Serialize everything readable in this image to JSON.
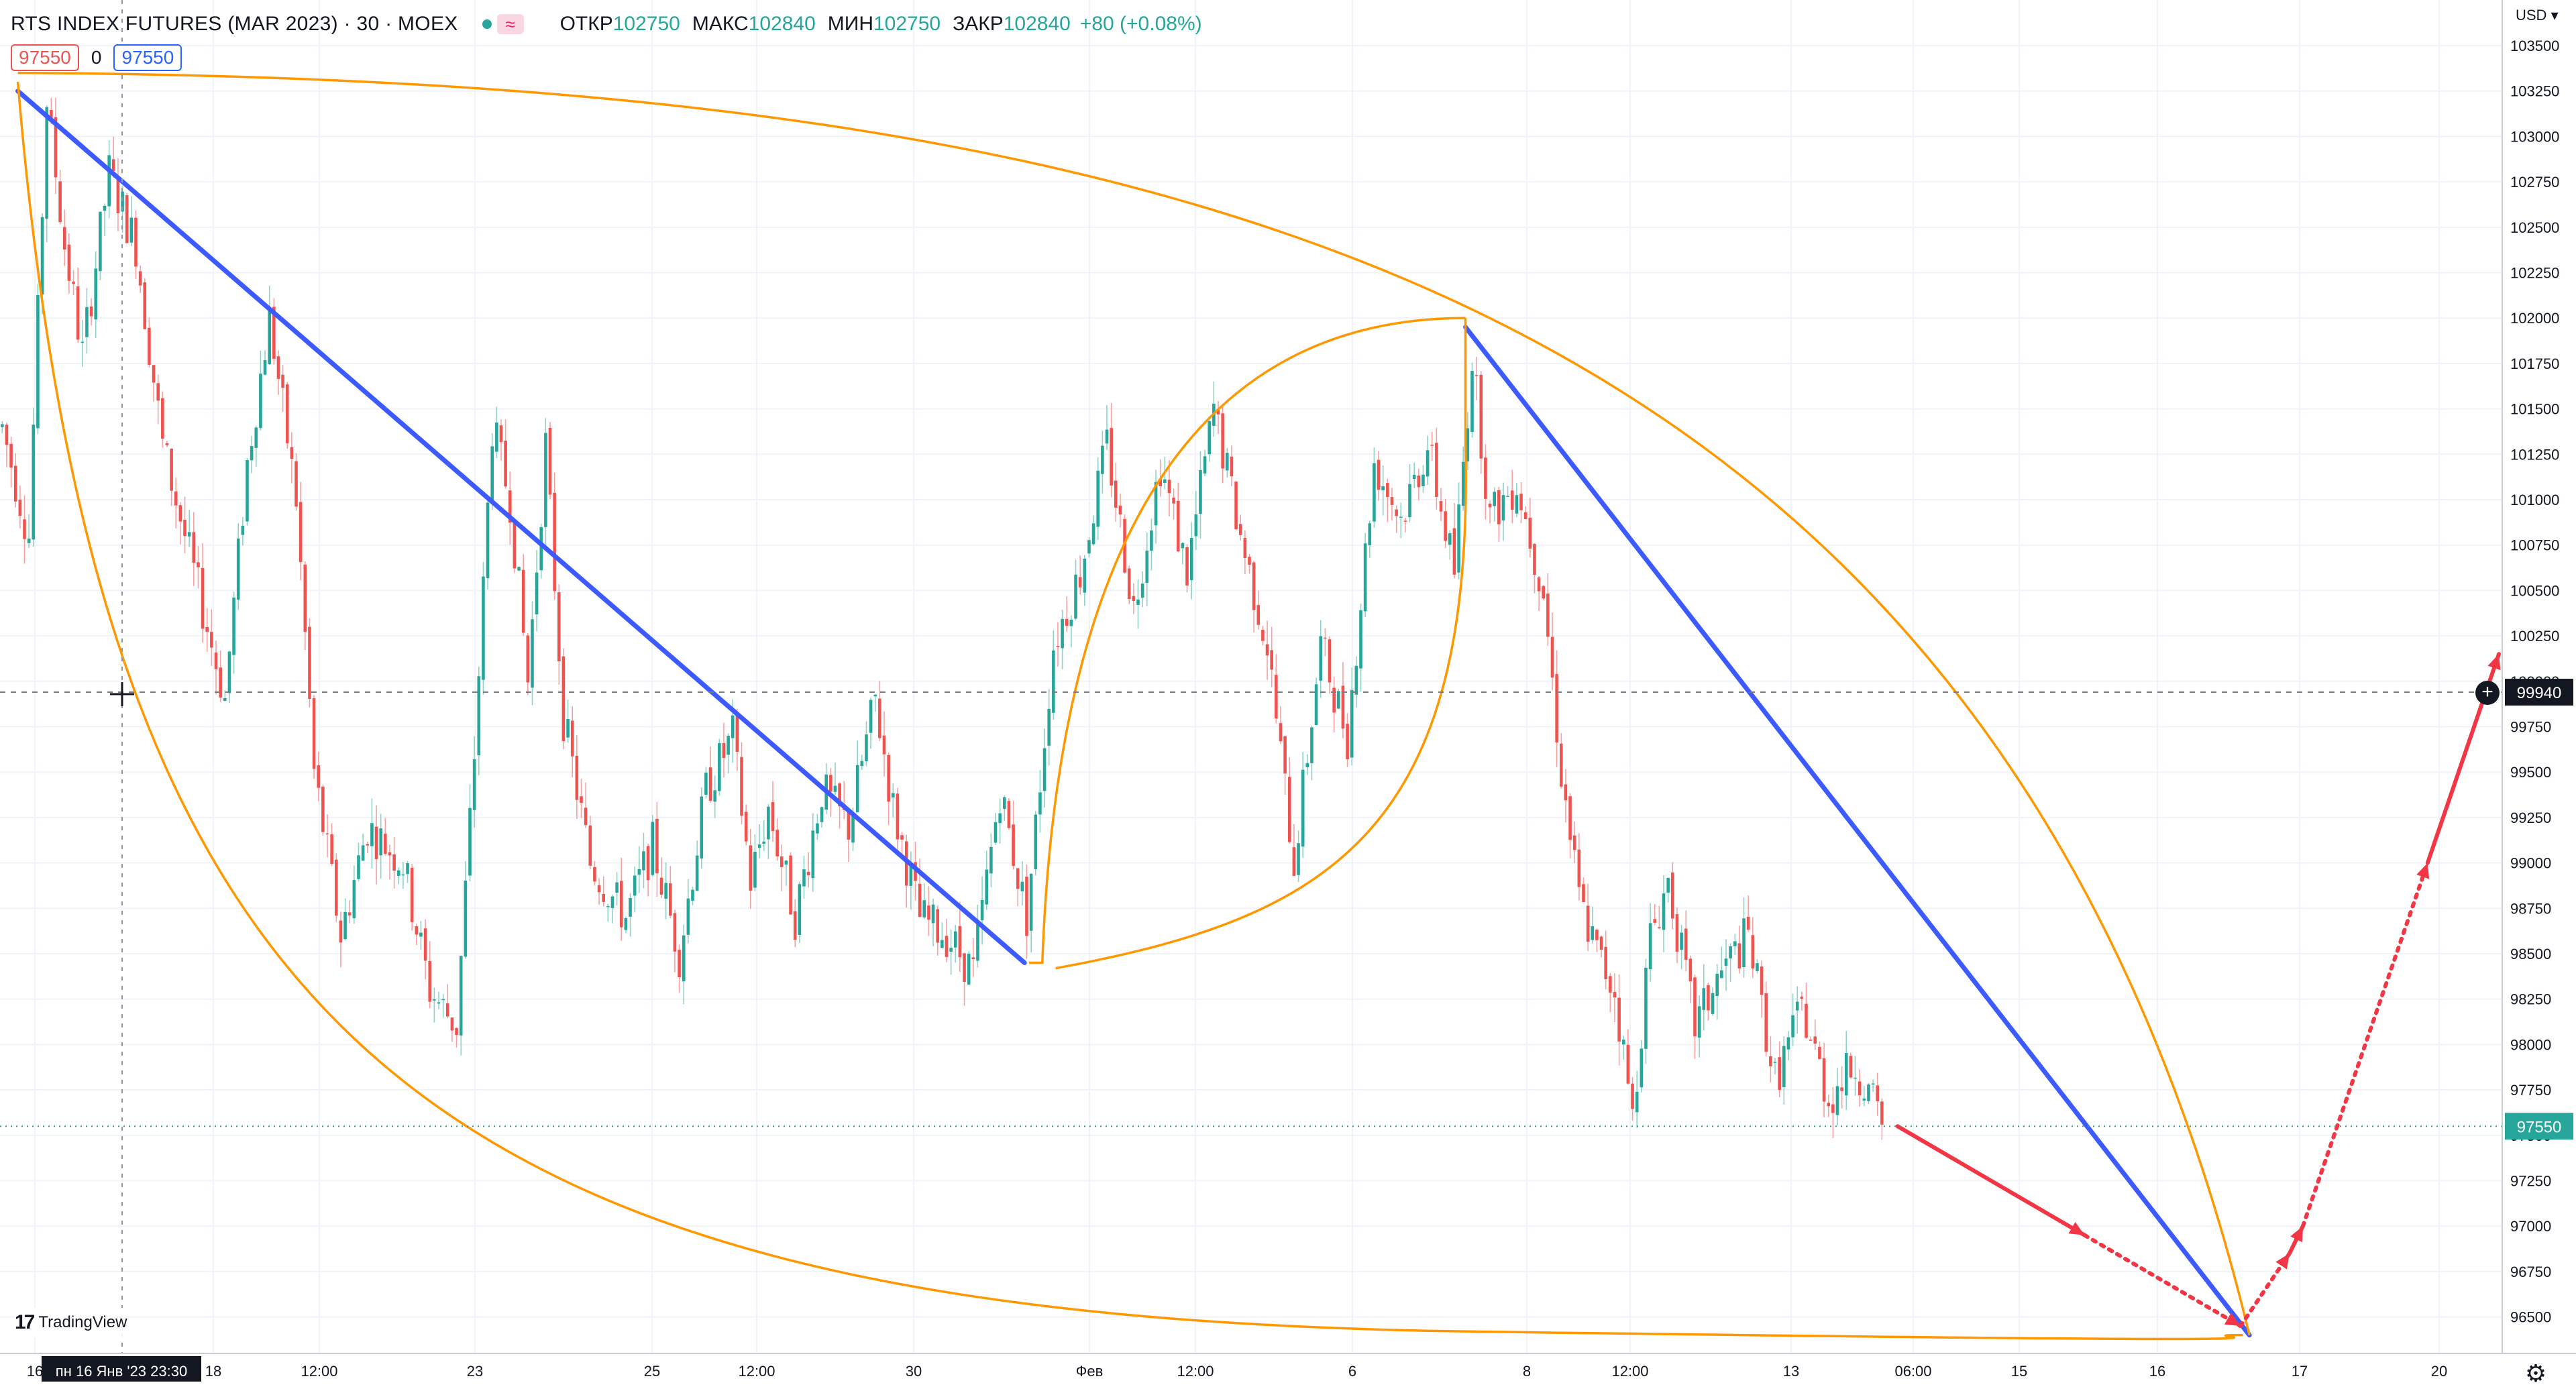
{
  "header": {
    "symbol": "RTS INDEX FUTURES (MAR 2023) · 30 · MOEX",
    "open_label": "ОТКР",
    "open_value": "102750",
    "high_label": "МАКС",
    "high_value": "102840",
    "low_label": "МИН",
    "low_value": "102750",
    "close_label": "ЗАКР",
    "close_value": "102840",
    "change": "+80 (+0.08%)"
  },
  "trade": {
    "sell_price": "97550",
    "spread": "0",
    "buy_price": "97550"
  },
  "currency": "USD",
  "logo_text": "TradingView",
  "crosshair_time_label": "пн 16 Янв '23   23:30",
  "crosshair_price_label": "99940",
  "last_price_label": "97550",
  "chart_data": {
    "type": "candlestick",
    "title": "RTS INDEX FUTURES (MAR 2023) · 30 · MOEX",
    "x_ticks": [
      "16",
      "18",
      "12:00",
      "23",
      "25",
      "12:00",
      "30",
      "Фев",
      "12:00",
      "6",
      "8",
      "12:00",
      "13",
      "06:00",
      "15",
      "16",
      "17",
      "20"
    ],
    "y_ticks": [
      103500,
      103250,
      103000,
      102750,
      102500,
      102250,
      102000,
      101750,
      101500,
      101250,
      101000,
      100750,
      100500,
      100250,
      100000,
      99750,
      99500,
      99250,
      99000,
      98750,
      98500,
      98250,
      98000,
      97750,
      97500,
      97250,
      97000,
      96750,
      96500
    ],
    "ylim": [
      96300,
      103700
    ],
    "grid": true,
    "colors": {
      "up": "#26a69a",
      "down": "#ef5350",
      "wick_up": "#8dd3c7",
      "wick_down": "#f7a1a1",
      "trendline": "#3d5afe",
      "curve": "#ff9800",
      "arrow": "#f23645"
    },
    "price_path": [
      [
        0,
        101400
      ],
      [
        6,
        100800
      ],
      [
        10,
        103200
      ],
      [
        14,
        102400
      ],
      [
        18,
        101800
      ],
      [
        24,
        102800
      ],
      [
        30,
        102400
      ],
      [
        36,
        101300
      ],
      [
        44,
        100500
      ],
      [
        50,
        99900
      ],
      [
        55,
        101200
      ],
      [
        60,
        102000
      ],
      [
        66,
        101000
      ],
      [
        70,
        99500
      ],
      [
        76,
        98600
      ],
      [
        82,
        99200
      ],
      [
        90,
        99000
      ],
      [
        96,
        98300
      ],
      [
        102,
        98100
      ],
      [
        106,
        99600
      ],
      [
        110,
        101400
      ],
      [
        114,
        101000
      ],
      [
        118,
        100000
      ],
      [
        122,
        101300
      ],
      [
        126,
        99800
      ],
      [
        132,
        99000
      ],
      [
        140,
        98700
      ],
      [
        146,
        99100
      ],
      [
        152,
        98500
      ],
      [
        158,
        99400
      ],
      [
        164,
        99700
      ],
      [
        168,
        98900
      ],
      [
        172,
        99300
      ],
      [
        178,
        98700
      ],
      [
        184,
        99400
      ],
      [
        190,
        99200
      ],
      [
        196,
        99900
      ],
      [
        200,
        99300
      ],
      [
        206,
        98700
      ],
      [
        212,
        98600
      ],
      [
        218,
        98400
      ],
      [
        224,
        99400
      ],
      [
        230,
        98700
      ],
      [
        236,
        100200
      ],
      [
        242,
        100600
      ],
      [
        248,
        101300
      ],
      [
        254,
        100400
      ],
      [
        260,
        101200
      ],
      [
        266,
        100600
      ],
      [
        272,
        101500
      ],
      [
        278,
        100800
      ],
      [
        284,
        100200
      ],
      [
        290,
        99000
      ],
      [
        296,
        100200
      ],
      [
        302,
        99700
      ],
      [
        308,
        101200
      ],
      [
        314,
        100900
      ],
      [
        320,
        101300
      ],
      [
        326,
        100600
      ],
      [
        330,
        101800
      ],
      [
        334,
        100900
      ],
      [
        340,
        101100
      ],
      [
        346,
        100500
      ],
      [
        350,
        99500
      ],
      [
        354,
        98800
      ],
      [
        358,
        98500
      ],
      [
        362,
        98300
      ],
      [
        366,
        97600
      ],
      [
        370,
        98600
      ],
      [
        374,
        98900
      ],
      [
        380,
        98100
      ],
      [
        386,
        98400
      ],
      [
        392,
        98600
      ],
      [
        398,
        97800
      ],
      [
        404,
        98200
      ],
      [
        410,
        97700
      ],
      [
        416,
        97900
      ],
      [
        422,
        97550
      ]
    ],
    "bars_shown": 422,
    "drawings": {
      "blue_trendlines": [
        {
          "from": [
            4,
            103250
          ],
          "to": [
            230,
            98450
          ]
        },
        {
          "from": [
            329,
            101950
          ],
          "to": [
            505,
            96400
          ]
        }
      ],
      "orange_outer_arc": {
        "from": [
          4,
          103350
        ],
        "peak": [
          176,
          102600
        ],
        "to": [
          505,
          96400
        ]
      },
      "orange_lower_arc": {
        "from": [
          4,
          103300
        ],
        "bottom": [
          170,
          96500
        ],
        "to": [
          505,
          96400
        ]
      },
      "orange_inner_arc": {
        "from": [
          233,
          98450
        ],
        "top": [
          329,
          102000
        ],
        "bottom_left": [
          233,
          98300
        ]
      },
      "red_forecast": [
        [
          426,
          97550
        ],
        [
          468,
          96950
        ],
        [
          503,
          96450
        ],
        [
          514,
          96850
        ],
        [
          517,
          97000
        ],
        [
          545,
          99000
        ],
        [
          561,
          100150
        ]
      ]
    }
  }
}
